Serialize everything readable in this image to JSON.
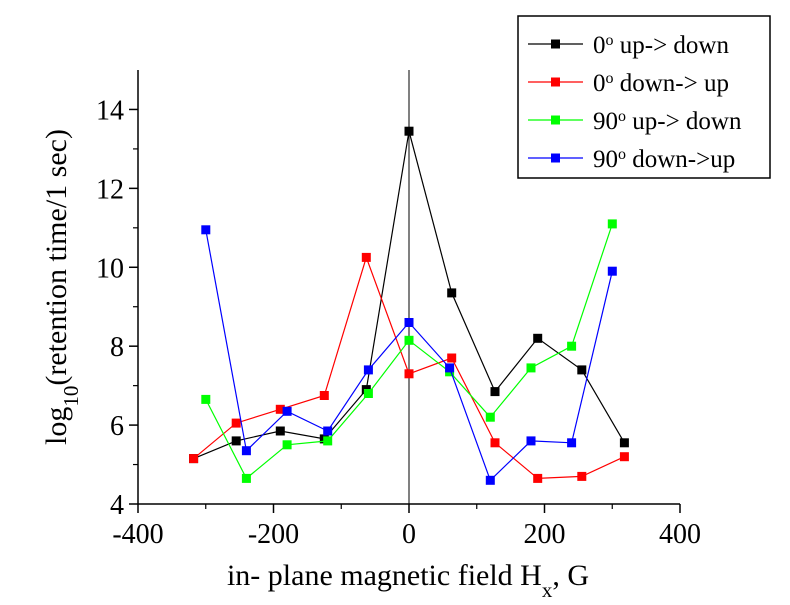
{
  "chart_data": {
    "type": "line",
    "title": "",
    "xlabel": "in- plane magnetic field H",
    "xlabel_sub": "x",
    "xlabel_suffix": ", G",
    "ylabel_prefix": "log",
    "ylabel_sub": "10",
    "ylabel_suffix": "(retention time/1 sec)",
    "xlim": [
      -400,
      400
    ],
    "ylim": [
      4,
      15
    ],
    "xticks": [
      -400,
      -200,
      0,
      200,
      400
    ],
    "yticks": [
      4,
      6,
      8,
      10,
      12,
      14
    ],
    "xtick_labels": [
      "-400",
      "-200",
      "0",
      "200",
      "400"
    ],
    "ytick_labels": [
      "4",
      "6",
      "8",
      "10",
      "12",
      "14"
    ],
    "grid": false,
    "zero_line": true,
    "legend_position": "top-right",
    "series": [
      {
        "name": "0° up-> down",
        "label_main": "0",
        "label_sup": "o",
        "label_rest": " up-> down",
        "color": "#000000",
        "x": [
          -318,
          -255,
          -190,
          -125,
          -63,
          0,
          63,
          127,
          190,
          255,
          318
        ],
        "y": [
          5.15,
          5.6,
          5.85,
          5.65,
          6.9,
          13.45,
          9.35,
          6.85,
          8.2,
          7.4,
          5.55
        ]
      },
      {
        "name": "0° down-> up",
        "label_main": "0",
        "label_sup": "o",
        "label_rest": " down-> up",
        "color": "#ff0000",
        "x": [
          -318,
          -255,
          -190,
          -125,
          -63,
          0,
          63,
          127,
          190,
          255,
          318
        ],
        "y": [
          5.15,
          6.05,
          6.4,
          6.75,
          10.25,
          7.3,
          7.7,
          5.55,
          4.65,
          4.7,
          5.2
        ]
      },
      {
        "name": "90° up-> down",
        "label_main": "90",
        "label_sup": "o",
        "label_rest": " up-> down",
        "color": "#00ff00",
        "x": [
          -300,
          -240,
          -180,
          -120,
          -60,
          0,
          60,
          120,
          180,
          240,
          300
        ],
        "y": [
          6.65,
          4.65,
          5.5,
          5.6,
          6.8,
          8.15,
          7.35,
          6.2,
          7.45,
          8.0,
          11.1
        ]
      },
      {
        "name": "90° down->up",
        "label_main": "90",
        "label_sup": "o",
        "label_rest": " down->up",
        "color": "#0000ff",
        "x": [
          -300,
          -240,
          -180,
          -120,
          -60,
          0,
          60,
          120,
          180,
          240,
          300
        ],
        "y": [
          10.95,
          5.35,
          6.35,
          5.85,
          7.4,
          8.6,
          7.45,
          4.6,
          5.6,
          5.55,
          9.9
        ]
      }
    ]
  }
}
